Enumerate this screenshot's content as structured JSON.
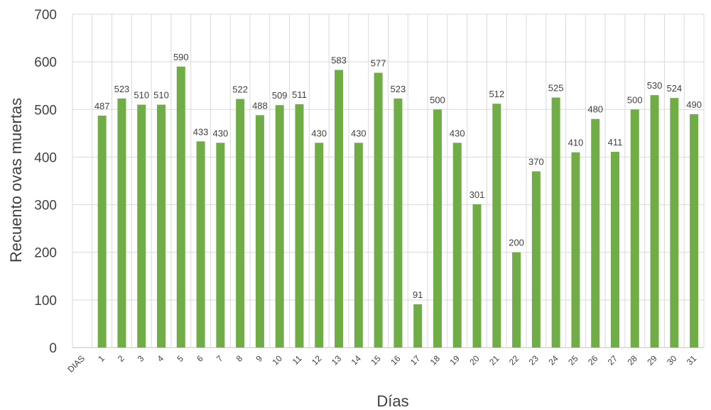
{
  "chart_data": {
    "type": "bar",
    "xlabel": "Días",
    "ylabel": "Recuento ovas muertas",
    "ylim": [
      0,
      700
    ],
    "yticks": [
      0,
      100,
      200,
      300,
      400,
      500,
      600,
      700
    ],
    "grid": true,
    "bar_color": "#70ad47",
    "categories": [
      "DIAS",
      "1",
      "2",
      "3",
      "4",
      "5",
      "6",
      "7",
      "8",
      "9",
      "10",
      "11",
      "12",
      "13",
      "14",
      "15",
      "16",
      "17",
      "18",
      "19",
      "20",
      "21",
      "22",
      "23",
      "24",
      "25",
      "26",
      "27",
      "28",
      "29",
      "30",
      "31"
    ],
    "values": [
      null,
      487,
      523,
      510,
      510,
      590,
      433,
      430,
      522,
      488,
      509,
      511,
      430,
      583,
      430,
      577,
      523,
      91,
      500,
      430,
      301,
      512,
      200,
      370,
      525,
      410,
      480,
      411,
      500,
      530,
      524,
      490
    ]
  }
}
